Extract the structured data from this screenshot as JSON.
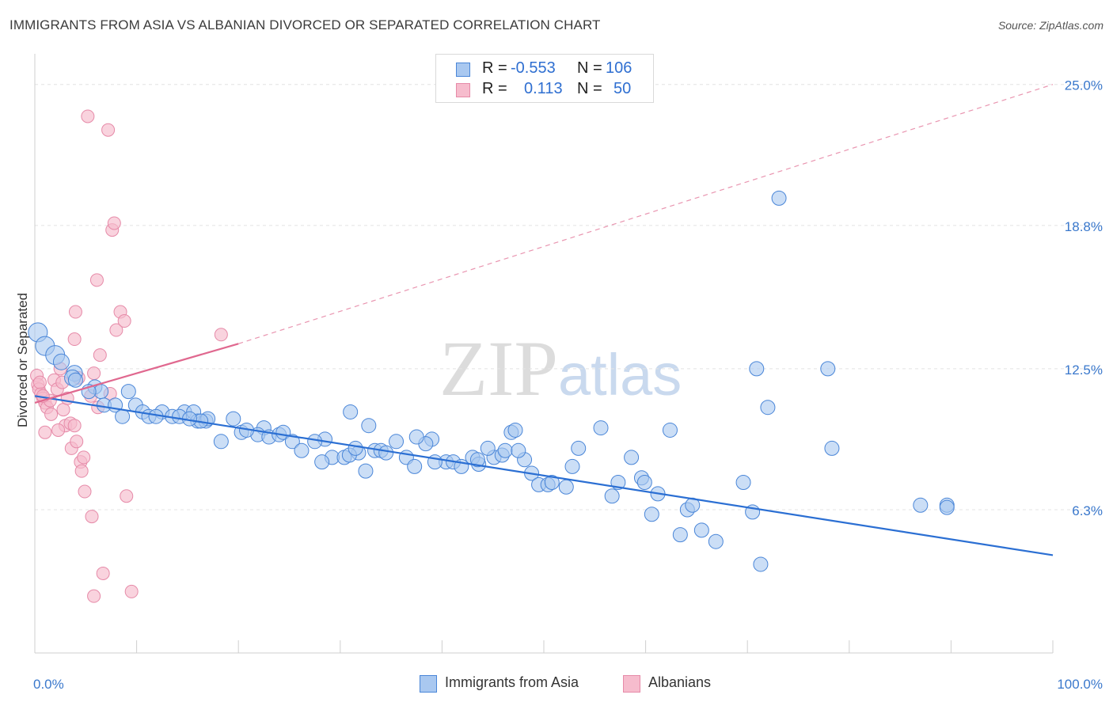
{
  "title": "IMMIGRANTS FROM ASIA VS ALBANIAN DIVORCED OR SEPARATED CORRELATION CHART",
  "source": "Source: ZipAtlas.com",
  "watermark": {
    "zip": "ZIP",
    "atlas": "atlas"
  },
  "stats": {
    "rows": [
      {
        "r_label": "R =",
        "r_value": "-0.553",
        "n_label": "N =",
        "n_value": "106"
      },
      {
        "r_label": "R =",
        "r_value": "0.113",
        "n_label": "N =",
        "n_value": "50"
      }
    ]
  },
  "legend": {
    "items": [
      {
        "label": "Immigrants from Asia"
      },
      {
        "label": "Albanians"
      }
    ]
  },
  "colors": {
    "blue_fill": "#a9c8f0",
    "blue_stroke": "#4a86d8",
    "blue_line": "#2b6fd3",
    "pink_fill": "#f6bccd",
    "pink_stroke": "#e68aa8",
    "pink_line": "#e0688f",
    "axis_label": "#3a78cc",
    "grid": "#e4e4e4"
  },
  "chart_data": {
    "type": "scatter",
    "ylabel": "Divorced or Separated",
    "xlim": [
      0,
      100
    ],
    "ylim": [
      0,
      26
    ],
    "x_tick_labels": [
      "0.0%",
      "100.0%"
    ],
    "y_ticks": [
      6.3,
      12.5,
      18.8,
      25.0
    ],
    "y_tick_labels": [
      "6.3%",
      "12.5%",
      "18.8%",
      "25.0%"
    ],
    "grid": true,
    "series": [
      {
        "name": "Immigrants from Asia",
        "trend": {
          "x": [
            0,
            100
          ],
          "y": [
            11.3,
            4.3
          ],
          "style": "solid"
        },
        "points": [
          [
            0.3,
            14.1
          ],
          [
            1.0,
            13.5
          ],
          [
            2.0,
            13.1
          ],
          [
            2.6,
            12.8
          ],
          [
            3.9,
            12.3
          ],
          [
            3.7,
            12.1
          ],
          [
            4.0,
            12.0
          ],
          [
            5.9,
            11.7
          ],
          [
            6.5,
            11.5
          ],
          [
            5.3,
            11.5
          ],
          [
            6.8,
            10.9
          ],
          [
            7.9,
            10.9
          ],
          [
            9.9,
            10.9
          ],
          [
            10.6,
            10.6
          ],
          [
            12.5,
            10.6
          ],
          [
            11.2,
            10.4
          ],
          [
            14.7,
            10.6
          ],
          [
            13.5,
            10.4
          ],
          [
            15.6,
            10.6
          ],
          [
            16.0,
            10.2
          ],
          [
            16.8,
            10.2
          ],
          [
            17.0,
            10.3
          ],
          [
            16.3,
            10.2
          ],
          [
            14.2,
            10.4
          ],
          [
            11.9,
            10.4
          ],
          [
            8.6,
            10.4
          ],
          [
            19.5,
            10.3
          ],
          [
            22.5,
            9.9
          ],
          [
            21.9,
            9.6
          ],
          [
            20.3,
            9.7
          ],
          [
            23.0,
            9.5
          ],
          [
            24.0,
            9.6
          ],
          [
            24.4,
            9.7
          ],
          [
            25.3,
            9.3
          ],
          [
            26.2,
            8.9
          ],
          [
            28.5,
            9.4
          ],
          [
            27.5,
            9.3
          ],
          [
            29.2,
            8.6
          ],
          [
            28.2,
            8.4
          ],
          [
            31.8,
            8.8
          ],
          [
            30.4,
            8.6
          ],
          [
            30.9,
            8.7
          ],
          [
            32.5,
            8.0
          ],
          [
            33.4,
            8.9
          ],
          [
            34.0,
            8.9
          ],
          [
            35.5,
            9.3
          ],
          [
            36.5,
            8.6
          ],
          [
            37.3,
            8.2
          ],
          [
            39.0,
            9.4
          ],
          [
            38.4,
            9.2
          ],
          [
            40.4,
            8.4
          ],
          [
            41.1,
            8.4
          ],
          [
            41.9,
            8.2
          ],
          [
            43.0,
            8.6
          ],
          [
            43.6,
            8.3
          ],
          [
            45.1,
            8.6
          ],
          [
            45.9,
            8.7
          ],
          [
            46.2,
            8.9
          ],
          [
            46.8,
            9.7
          ],
          [
            47.2,
            9.8
          ],
          [
            48.1,
            8.5
          ],
          [
            48.8,
            7.9
          ],
          [
            49.5,
            7.4
          ],
          [
            50.4,
            7.4
          ],
          [
            52.2,
            7.3
          ],
          [
            53.4,
            9.0
          ],
          [
            52.8,
            8.2
          ],
          [
            55.6,
            9.9
          ],
          [
            56.7,
            6.9
          ],
          [
            57.3,
            7.5
          ],
          [
            58.6,
            8.6
          ],
          [
            59.6,
            7.7
          ],
          [
            59.9,
            7.5
          ],
          [
            60.6,
            6.1
          ],
          [
            61.2,
            7.0
          ],
          [
            62.4,
            9.8
          ],
          [
            63.4,
            5.2
          ],
          [
            64.1,
            6.3
          ],
          [
            64.6,
            6.5
          ],
          [
            65.5,
            5.4
          ],
          [
            66.9,
            4.9
          ],
          [
            69.6,
            7.5
          ],
          [
            70.5,
            6.2
          ],
          [
            71.3,
            3.9
          ],
          [
            72.0,
            10.8
          ],
          [
            73.1,
            20.0
          ],
          [
            70.9,
            12.5
          ],
          [
            77.9,
            12.5
          ],
          [
            78.3,
            9.0
          ],
          [
            89.6,
            6.5
          ],
          [
            89.6,
            6.4
          ],
          [
            87.0,
            6.5
          ],
          [
            31.0,
            10.6
          ],
          [
            32.8,
            10.0
          ],
          [
            34.5,
            8.8
          ],
          [
            31.5,
            9.0
          ],
          [
            39.3,
            8.4
          ],
          [
            43.5,
            8.5
          ],
          [
            44.5,
            9.0
          ],
          [
            47.5,
            8.9
          ],
          [
            50.8,
            7.5
          ],
          [
            37.5,
            9.5
          ],
          [
            20.8,
            9.8
          ],
          [
            18.3,
            9.3
          ],
          [
            15.2,
            10.3
          ],
          [
            9.2,
            11.5
          ]
        ]
      },
      {
        "name": "Albanians",
        "trend": {
          "x": [
            0,
            20
          ],
          "y": [
            11.0,
            13.6
          ],
          "style": "solid"
        },
        "trend_dashed": {
          "x": [
            20,
            100
          ],
          "y": [
            13.6,
            25.0
          ],
          "style": "dashed"
        },
        "points": [
          [
            0.2,
            12.2
          ],
          [
            0.3,
            11.8
          ],
          [
            0.4,
            11.6
          ],
          [
            0.6,
            11.4
          ],
          [
            0.8,
            11.2
          ],
          [
            1.0,
            11.0
          ],
          [
            0.5,
            11.9
          ],
          [
            1.2,
            10.8
          ],
          [
            1.6,
            10.5
          ],
          [
            1.9,
            12.0
          ],
          [
            2.2,
            11.6
          ],
          [
            2.5,
            12.5
          ],
          [
            2.7,
            11.9
          ],
          [
            2.8,
            10.7
          ],
          [
            3.0,
            10.0
          ],
          [
            3.2,
            11.2
          ],
          [
            3.5,
            10.1
          ],
          [
            3.6,
            9.0
          ],
          [
            3.9,
            10.0
          ],
          [
            4.1,
            9.3
          ],
          [
            4.3,
            12.1
          ],
          [
            4.5,
            8.4
          ],
          [
            4.6,
            8.0
          ],
          [
            4.8,
            8.6
          ],
          [
            4.9,
            7.1
          ],
          [
            5.5,
            11.3
          ],
          [
            5.6,
            6.0
          ],
          [
            5.8,
            12.3
          ],
          [
            6.1,
            16.4
          ],
          [
            6.2,
            10.8
          ],
          [
            6.4,
            13.1
          ],
          [
            6.7,
            3.5
          ],
          [
            7.2,
            23.0
          ],
          [
            7.4,
            11.4
          ],
          [
            7.6,
            18.6
          ],
          [
            7.8,
            18.9
          ],
          [
            8.0,
            14.2
          ],
          [
            8.4,
            15.0
          ],
          [
            8.8,
            14.6
          ],
          [
            9.0,
            6.9
          ],
          [
            9.5,
            2.7
          ],
          [
            5.2,
            23.6
          ],
          [
            18.3,
            14.0
          ],
          [
            3.9,
            13.8
          ],
          [
            2.3,
            9.8
          ],
          [
            1.5,
            11.1
          ],
          [
            4.0,
            15.0
          ],
          [
            5.8,
            2.5
          ],
          [
            1.0,
            9.7
          ],
          [
            0.8,
            11.3
          ]
        ]
      }
    ]
  }
}
